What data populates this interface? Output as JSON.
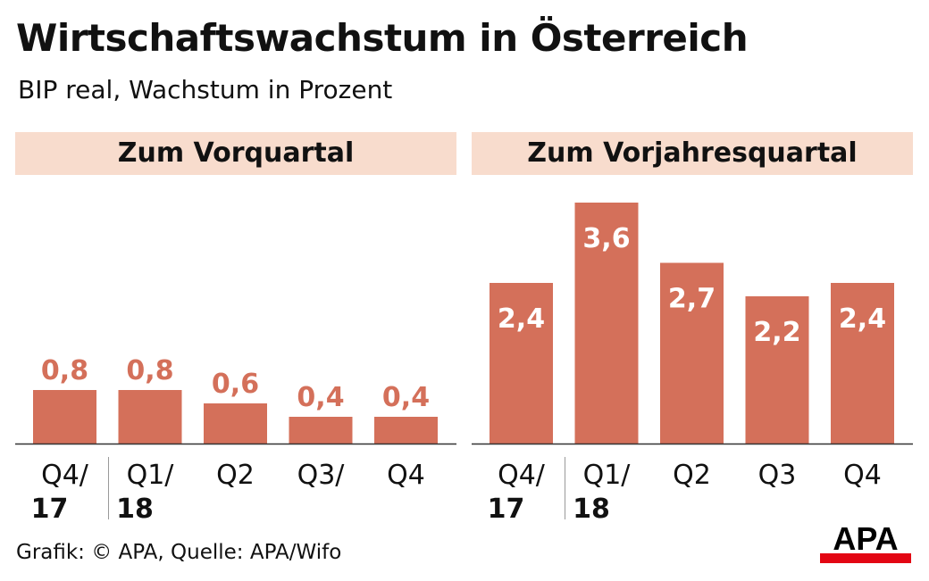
{
  "header": {
    "title": "Wirtschaftswachstum in Österreich",
    "subtitle": "BIP real, Wachstum in Prozent"
  },
  "footer": {
    "source": "Grafik: © APA, Quelle: APA/Wifo",
    "logo_text": "APA"
  },
  "colors": {
    "bar": "#d4705a",
    "label_outside": "#d4705a",
    "label_inside": "#ffffff",
    "panel_header_bg": "#f8dccd",
    "axis": "#333333",
    "separator": "#9a9a9a"
  },
  "chart_data": [
    {
      "type": "bar",
      "title": "Zum Vorquartal",
      "categories": [
        {
          "line1": "Q4/",
          "line2": "17"
        },
        {
          "line1": "Q1/",
          "line2": "18"
        },
        {
          "line1": "Q2",
          "line2": ""
        },
        {
          "line1": "Q3/",
          "line2": ""
        },
        {
          "line1": "Q4",
          "line2": ""
        }
      ],
      "values": [
        0.8,
        0.8,
        0.6,
        0.4,
        0.4
      ],
      "value_labels": [
        "0,8",
        "0,8",
        "0,6",
        "0,4",
        "0,4"
      ],
      "label_position": "above",
      "ylim": [
        0,
        3.6
      ],
      "grid": false,
      "legend": "none"
    },
    {
      "type": "bar",
      "title": "Zum Vorjahresquartal",
      "categories": [
        {
          "line1": "Q4/",
          "line2": "17"
        },
        {
          "line1": "Q1/",
          "line2": "18"
        },
        {
          "line1": "Q2",
          "line2": ""
        },
        {
          "line1": "Q3",
          "line2": ""
        },
        {
          "line1": "Q4",
          "line2": ""
        }
      ],
      "values": [
        2.4,
        3.6,
        2.7,
        2.2,
        2.4
      ],
      "value_labels": [
        "2,4",
        "3,6",
        "2,7",
        "2,2",
        "2,4"
      ],
      "label_position": "inside",
      "ylim": [
        0,
        3.6
      ],
      "grid": false,
      "legend": "none"
    }
  ]
}
